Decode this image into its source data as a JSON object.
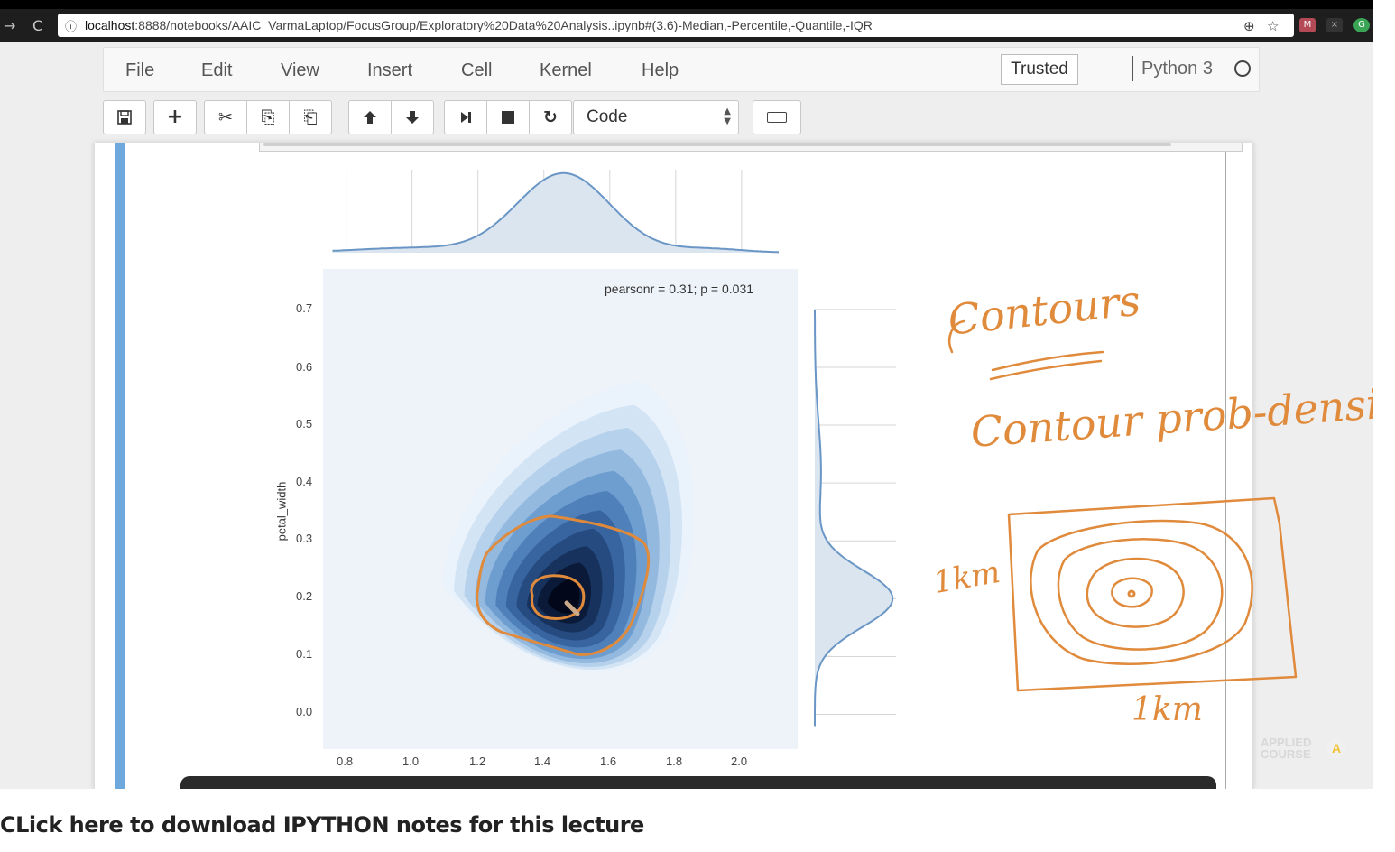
{
  "browser": {
    "url_info_icon": "info-icon",
    "url_host": "localhost",
    "url_rest": ":8888/notebooks/AAIC_VarmaLaptop/FocusGroup/Exploratory%20Data%20Analysis..ipynb#(3.6)-Median,-Percentile,-Quantile,-IQR",
    "back_icon": "→",
    "reload_icon": "C",
    "zoom_icon": "⊕",
    "star_icon": "☆"
  },
  "menu": {
    "items": [
      "File",
      "Edit",
      "View",
      "Insert",
      "Cell",
      "Kernel",
      "Help"
    ],
    "trusted": "Trusted",
    "kernel_name": "Python 3"
  },
  "toolbar": {
    "save": "🖫",
    "add": "+",
    "cut": "✂",
    "copy": "⎘",
    "paste": "⎗",
    "move_up": "🡅",
    "move_down": "🡇",
    "run": "⏭",
    "stop": "■",
    "restart": "↻",
    "cell_type": "Code"
  },
  "chart_data": {
    "type": "jointplot-kde",
    "annotation": "pearsonr = 0.31; p = 0.031",
    "ylabel": "petal_width",
    "xlabel": "",
    "xticks": [
      "0.8",
      "1.0",
      "1.2",
      "1.4",
      "1.6",
      "1.8",
      "2.0"
    ],
    "yticks": [
      "0.7",
      "0.6",
      "0.5",
      "0.4",
      "0.3",
      "0.2",
      "0.1",
      "0.0"
    ],
    "xlim": [
      0.73,
      2.17
    ],
    "ylim": [
      -0.06,
      0.77
    ],
    "density_peak": {
      "x": 1.46,
      "y": 0.2
    },
    "marginal_x_peak": 1.46,
    "marginal_y_peak": 0.2,
    "colors": {
      "kde_levels": [
        "#eaf2fb",
        "#d3e4f5",
        "#b6d1ec",
        "#93b9df",
        "#6e9dd0",
        "#4f80ba",
        "#3864a0",
        "#264b80",
        "#16325d",
        "#0a1a38",
        "#02081a"
      ],
      "marginal_line": "#6a96c6",
      "marginal_fill": "#dbe5ef",
      "plot_bg": "#eef2f9",
      "ink": "#e08a3c"
    }
  },
  "handwriting": {
    "contours": "Contours",
    "contour_prob_density": "Contour prob-density",
    "label_1km_left": "1km",
    "label_1km_bottom": "1km"
  },
  "watermark": {
    "line1": "APPLIED",
    "line2": "COURSE",
    "badge": "A"
  },
  "caption": "CLick here to download IPYTHON notes for this lecture"
}
